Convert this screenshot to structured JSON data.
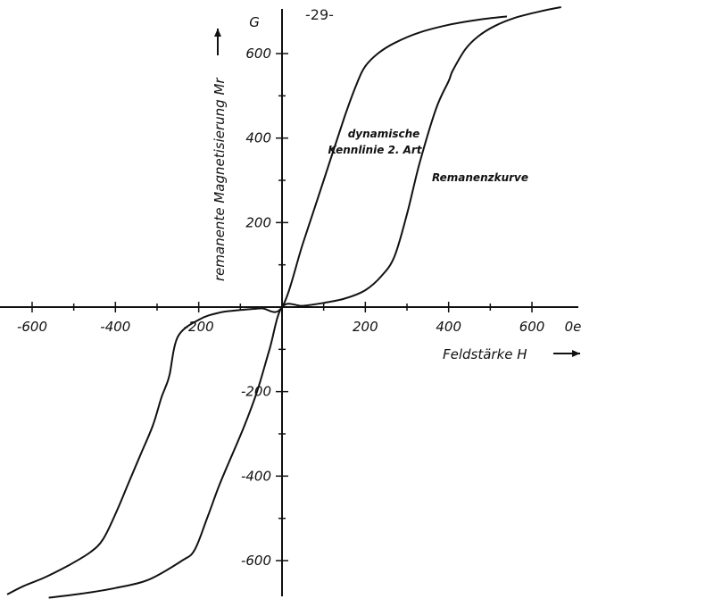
{
  "page_marker": "-29-",
  "chart_data": {
    "type": "line",
    "xlabel": "Feldstärke H",
    "x_unit": "Oe",
    "ylabel": "remanente Magnetisierung Mr",
    "y_unit": "G",
    "xlim": [
      -660,
      680
    ],
    "ylim": [
      -680,
      710
    ],
    "x_ticks": [
      -600,
      -400,
      -200,
      200,
      400,
      600
    ],
    "x_tick_labels": [
      "-600",
      "-400",
      "-200",
      "200",
      "400",
      "600"
    ],
    "x_unit_label": "0e",
    "y_ticks": [
      -600,
      -400,
      -200,
      200,
      400,
      600
    ],
    "y_tick_labels": [
      "-600",
      "-400",
      "-200",
      "200",
      "400",
      "600"
    ],
    "y_unit_label": "G",
    "grid": false,
    "series": [
      {
        "name": "dynamische Kennlinie 2. Art",
        "x": [
          -660,
          -620,
          -570,
          -510,
          -460,
          -430,
          -400,
          -370,
          -340,
          -310,
          -290,
          -280,
          -270,
          -250,
          -200,
          -150,
          -100,
          -50,
          0,
          50,
          100,
          150,
          180,
          200,
          230,
          270,
          330,
          400,
          470,
          540
        ],
        "y": [
          -680,
          -660,
          -640,
          -610,
          -580,
          -550,
          -490,
          -420,
          -350,
          -280,
          -215,
          -190,
          -160,
          -70,
          -30,
          -13,
          -7,
          -3,
          0,
          150,
          300,
          450,
          530,
          570,
          600,
          625,
          650,
          668,
          680,
          688
        ]
      },
      {
        "name": "Remanenzkurve",
        "x": [
          -560,
          -480,
          -400,
          -320,
          -240,
          -210,
          -180,
          -150,
          -120,
          -90,
          -60,
          -30,
          0,
          50,
          100,
          150,
          200,
          240,
          270,
          300,
          330,
          370,
          400,
          410,
          440,
          470,
          510,
          560,
          620,
          670
        ],
        "y": [
          -688,
          -678,
          -665,
          -645,
          -600,
          -575,
          -500,
          -420,
          -350,
          -280,
          -200,
          -100,
          0,
          3,
          10,
          20,
          40,
          75,
          120,
          220,
          340,
          470,
          535,
          560,
          610,
          640,
          665,
          685,
          700,
          710
        ]
      }
    ],
    "annotations": {
      "dynamic_line1": "dynamische",
      "dynamic_line2": "Kennlinie 2. Art",
      "remanence": "Remanenzkurve"
    }
  }
}
